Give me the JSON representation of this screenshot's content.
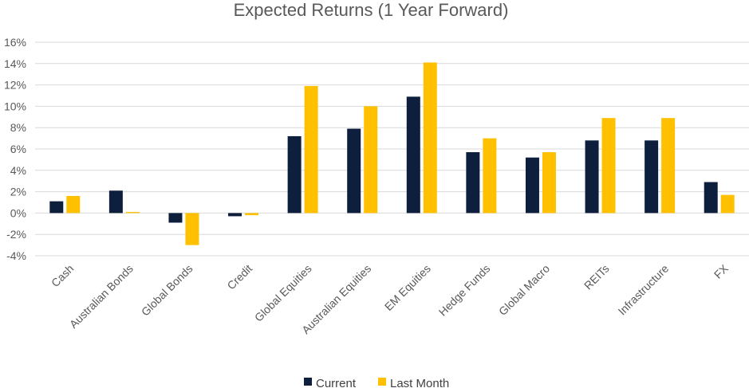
{
  "chart_data": {
    "type": "bar",
    "title": "Expected Returns (1 Year Forward)",
    "xlabel": "",
    "ylabel": "",
    "ylim": [
      -4,
      16
    ],
    "y_ticks": [
      "16%",
      "14%",
      "12%",
      "10%",
      "8%",
      "6%",
      "4%",
      "2%",
      "0%",
      "-2%",
      "-4%"
    ],
    "y_tick_values": [
      16,
      14,
      12,
      10,
      8,
      6,
      4,
      2,
      0,
      -2,
      -4
    ],
    "grid": true,
    "legend_position": "bottom",
    "categories": [
      "Cash",
      "Australian Bonds",
      "Global Bonds",
      "Credit",
      "Global Equities",
      "Australian Equities",
      "EM Equities",
      "Hedge Funds",
      "Global Macro",
      "REITs",
      "Infrastructure",
      "FX"
    ],
    "series": [
      {
        "name": "Current",
        "color": "#0d1f3c",
        "values": [
          1.1,
          2.1,
          -0.9,
          -0.3,
          7.2,
          7.9,
          10.9,
          5.7,
          5.2,
          6.8,
          6.8,
          2.9
        ]
      },
      {
        "name": "Last Month",
        "color": "#ffc000",
        "values": [
          1.6,
          0.1,
          -3.0,
          -0.2,
          11.9,
          10.0,
          14.1,
          7.0,
          5.7,
          8.9,
          8.9,
          1.7
        ]
      }
    ]
  }
}
